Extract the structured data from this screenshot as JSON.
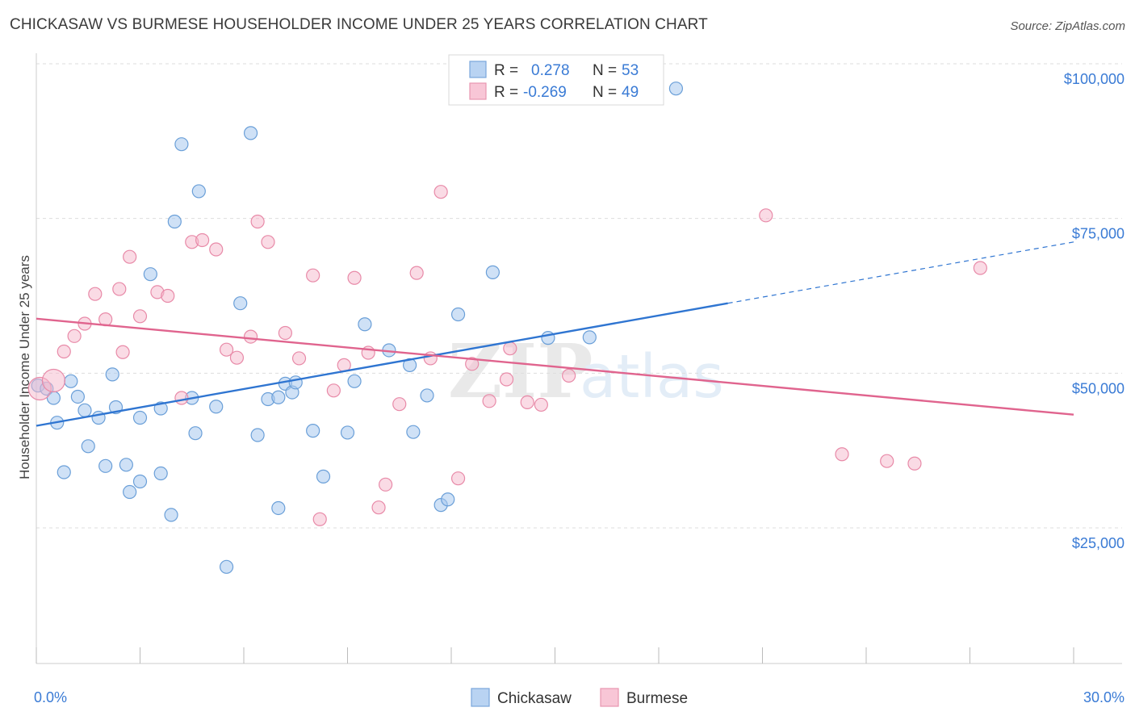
{
  "title": "CHICKASAW VS BURMESE HOUSEHOLDER INCOME UNDER 25 YEARS CORRELATION CHART",
  "source": "Source: ZipAtlas.com",
  "watermark": "ZIPatlas",
  "legend": {
    "rows": [
      {
        "r_label": "R =",
        "r_value": "0.278",
        "n_label": "N =",
        "n_value": "53"
      },
      {
        "r_label": "R =",
        "r_value": "-0.269",
        "n_label": "N =",
        "n_value": "49"
      }
    ]
  },
  "colors": {
    "chickasaw_fill": "#a8c8ee",
    "chickasaw_stroke": "#6a9fd8",
    "chickasaw_line": "#2f75d1",
    "burmese_fill": "#f6b8cb",
    "burmese_stroke": "#e88aa8",
    "burmese_line": "#e0648e",
    "tick_text": "#3a7bd5"
  },
  "chart_data": {
    "type": "scatter",
    "title": "CHICKASAW VS BURMESE HOUSEHOLDER INCOME UNDER 25 YEARS CORRELATION CHART",
    "xlabel": "",
    "ylabel": "Householder Income Under 25 years",
    "xlim": [
      0,
      30
    ],
    "ylim": [
      5000,
      107000
    ],
    "x_tick_labels": [
      "0.0%",
      "30.0%"
    ],
    "y_ticks": [
      25000,
      50000,
      75000,
      100000
    ],
    "y_tick_labels": [
      "$25,000",
      "$50,000",
      "$75,000",
      "$100,000"
    ],
    "grid": true,
    "legend_position": "top-center",
    "series": [
      {
        "name": "Chickasaw",
        "r": 0.278,
        "n": 53,
        "trend": {
          "x0": 0,
          "y0": 41500,
          "x1": 20,
          "y1": 61300,
          "dashed_to_x": 30,
          "dashed_to_y": 71200
        },
        "points": [
          [
            0.05,
            48000
          ],
          [
            0.3,
            47500
          ],
          [
            0.5,
            46000
          ],
          [
            0.6,
            42000
          ],
          [
            0.8,
            34000
          ],
          [
            1.0,
            48700
          ],
          [
            1.2,
            46200
          ],
          [
            1.4,
            44000
          ],
          [
            1.5,
            38200
          ],
          [
            1.8,
            42800
          ],
          [
            2.0,
            35000
          ],
          [
            2.2,
            49800
          ],
          [
            2.3,
            44500
          ],
          [
            2.6,
            35200
          ],
          [
            2.7,
            30800
          ],
          [
            3.0,
            32500
          ],
          [
            3.0,
            42800
          ],
          [
            3.3,
            66000
          ],
          [
            3.6,
            44300
          ],
          [
            3.6,
            33800
          ],
          [
            3.9,
            27100
          ],
          [
            4.0,
            74500
          ],
          [
            4.2,
            87000
          ],
          [
            4.5,
            46000
          ],
          [
            4.6,
            40300
          ],
          [
            4.7,
            79400
          ],
          [
            5.2,
            44600
          ],
          [
            5.5,
            18700
          ],
          [
            5.9,
            61300
          ],
          [
            6.2,
            88800
          ],
          [
            6.4,
            40000
          ],
          [
            6.7,
            45800
          ],
          [
            7.0,
            46100
          ],
          [
            7.0,
            28200
          ],
          [
            7.2,
            48300
          ],
          [
            7.4,
            46900
          ],
          [
            7.5,
            48500
          ],
          [
            8.0,
            40700
          ],
          [
            8.3,
            33300
          ],
          [
            9.0,
            40400
          ],
          [
            9.2,
            48700
          ],
          [
            9.5,
            57900
          ],
          [
            10.2,
            53700
          ],
          [
            10.8,
            51300
          ],
          [
            10.9,
            40500
          ],
          [
            11.3,
            46400
          ],
          [
            11.7,
            28700
          ],
          [
            11.9,
            29600
          ],
          [
            12.2,
            59500
          ],
          [
            13.2,
            66300
          ],
          [
            14.8,
            55700
          ],
          [
            16.0,
            55800
          ],
          [
            18.5,
            96000
          ]
        ]
      },
      {
        "name": "Burmese",
        "r": -0.269,
        "n": 49,
        "trend": {
          "x0": 0,
          "y0": 58800,
          "x1": 30,
          "y1": 43300
        },
        "points": [
          [
            0.1,
            47500
          ],
          [
            0.5,
            48800
          ],
          [
            0.8,
            53500
          ],
          [
            1.1,
            56000
          ],
          [
            1.4,
            58000
          ],
          [
            1.7,
            62800
          ],
          [
            2.0,
            58700
          ],
          [
            2.4,
            63600
          ],
          [
            2.5,
            53400
          ],
          [
            2.7,
            68800
          ],
          [
            3.0,
            59200
          ],
          [
            3.5,
            63100
          ],
          [
            3.8,
            62500
          ],
          [
            4.2,
            46000
          ],
          [
            4.5,
            71200
          ],
          [
            4.8,
            71500
          ],
          [
            5.2,
            70000
          ],
          [
            5.5,
            53800
          ],
          [
            5.8,
            52500
          ],
          [
            6.2,
            55900
          ],
          [
            6.4,
            74500
          ],
          [
            6.7,
            71200
          ],
          [
            7.2,
            56500
          ],
          [
            7.6,
            52400
          ],
          [
            8.0,
            65800
          ],
          [
            8.2,
            26400
          ],
          [
            8.6,
            47200
          ],
          [
            8.9,
            51300
          ],
          [
            9.2,
            65400
          ],
          [
            9.6,
            53300
          ],
          [
            9.9,
            28300
          ],
          [
            10.1,
            32000
          ],
          [
            10.5,
            45000
          ],
          [
            11.0,
            66200
          ],
          [
            11.4,
            52400
          ],
          [
            11.7,
            79300
          ],
          [
            12.2,
            33000
          ],
          [
            12.6,
            51500
          ],
          [
            13.1,
            45500
          ],
          [
            13.6,
            49000
          ],
          [
            13.7,
            54000
          ],
          [
            14.2,
            45300
          ],
          [
            14.6,
            44900
          ],
          [
            15.4,
            49600
          ],
          [
            21.1,
            75500
          ],
          [
            23.3,
            36900
          ],
          [
            24.6,
            35800
          ],
          [
            25.4,
            35400
          ],
          [
            27.3,
            67000
          ]
        ]
      }
    ]
  }
}
